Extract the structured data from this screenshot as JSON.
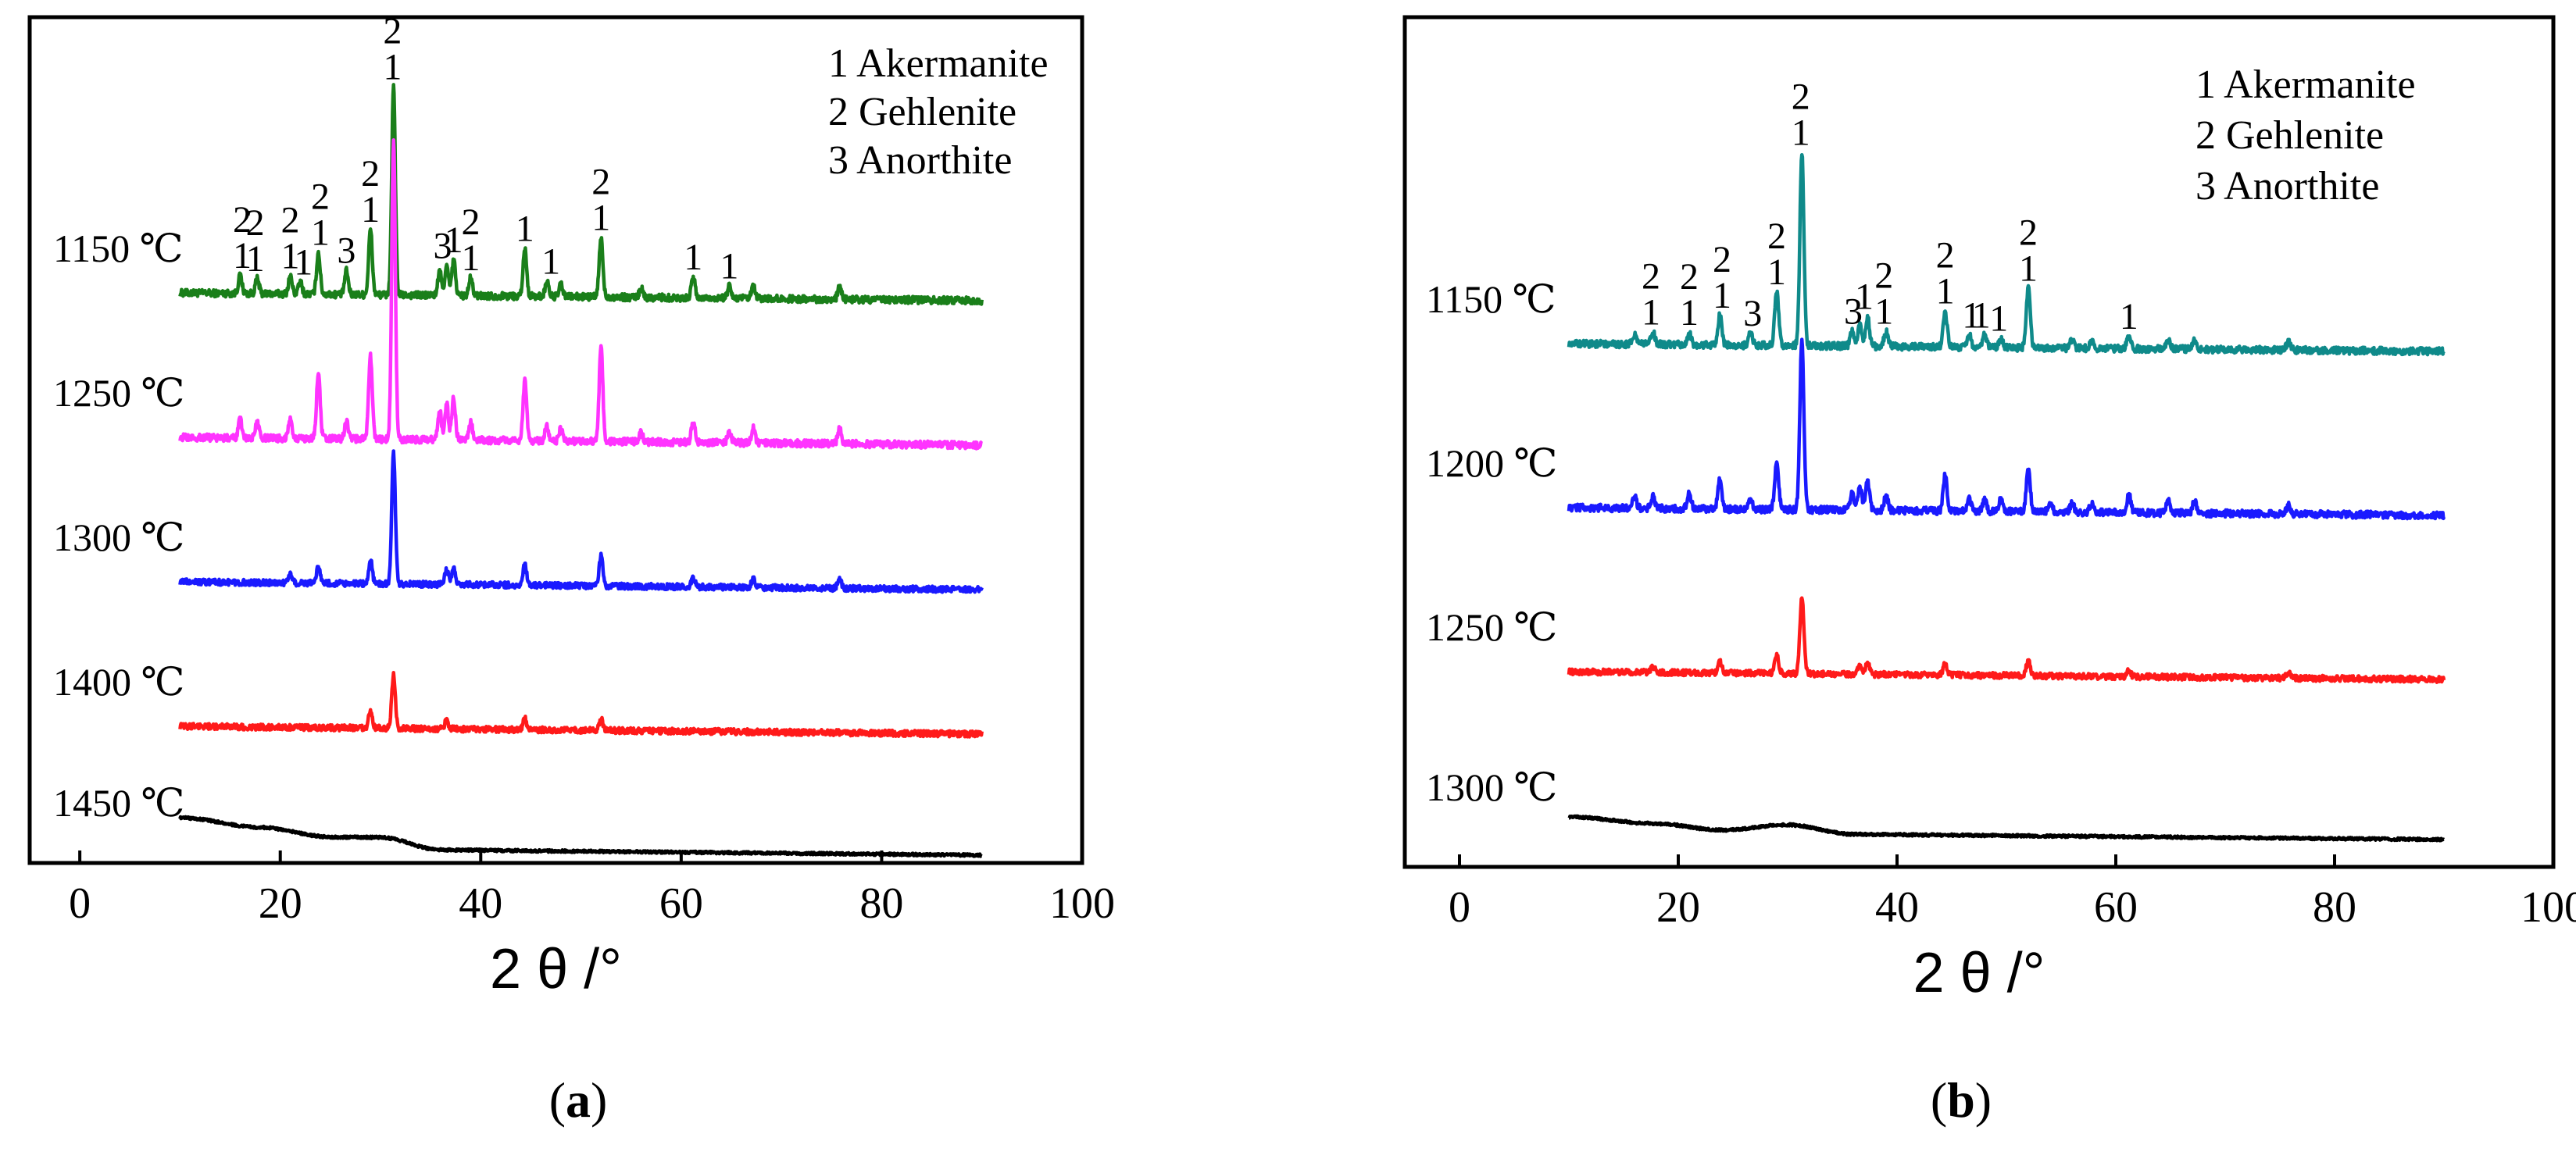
{
  "figure": {
    "panels": [
      {
        "label_open": "(",
        "label_letter": "a",
        "label_close": ")"
      },
      {
        "label_open": "(",
        "label_letter": "b",
        "label_close": ")"
      }
    ]
  },
  "chart_data": [
    {
      "type": "line",
      "panel": "a",
      "xlabel": "2 θ /°",
      "ylabel": "",
      "xlim": [
        -5,
        100
      ],
      "xticks": [
        0,
        20,
        40,
        60,
        80,
        100
      ],
      "xtick_labels": [
        "0",
        "20",
        "40",
        "60",
        "80",
        "100"
      ],
      "grid": false,
      "legend": {
        "placement": "top-right",
        "entries": [
          "1 Akermanite",
          "2 Gehlenite",
          "3 Anorthite"
        ]
      },
      "series": [
        {
          "name": "1150 ℃",
          "color": "#1a7f1a",
          "baseline": 0.14,
          "peaks": [
            [
              16.0,
              0.06
            ],
            [
              17.7,
              0.05
            ],
            [
              21.0,
              0.06
            ],
            [
              22.0,
              0.04
            ],
            [
              23.8,
              0.14
            ],
            [
              26.6,
              0.08
            ],
            [
              29.0,
              0.22
            ],
            [
              31.3,
              0.7
            ],
            [
              35.9,
              0.08
            ],
            [
              36.6,
              0.1
            ],
            [
              37.3,
              0.12
            ],
            [
              39.0,
              0.06
            ],
            [
              44.4,
              0.16
            ],
            [
              46.6,
              0.05
            ],
            [
              48.0,
              0.04
            ],
            [
              52.0,
              0.2
            ],
            [
              56.0,
              0.03
            ],
            [
              61.2,
              0.07
            ],
            [
              64.8,
              0.04
            ],
            [
              67.2,
              0.04
            ],
            [
              75.8,
              0.04
            ]
          ],
          "noise": 0.012
        },
        {
          "name": "1250 ℃",
          "color": "#ff33ff",
          "baseline": 0.11,
          "peaks": [
            [
              16.0,
              0.06
            ],
            [
              17.7,
              0.05
            ],
            [
              21.0,
              0.07
            ],
            [
              23.8,
              0.22
            ],
            [
              26.6,
              0.06
            ],
            [
              29.0,
              0.28
            ],
            [
              31.3,
              1.0
            ],
            [
              35.9,
              0.1
            ],
            [
              36.6,
              0.12
            ],
            [
              37.3,
              0.14
            ],
            [
              39.0,
              0.06
            ],
            [
              44.4,
              0.2
            ],
            [
              46.6,
              0.05
            ],
            [
              48.0,
              0.04
            ],
            [
              52.0,
              0.32
            ],
            [
              56.0,
              0.03
            ],
            [
              61.2,
              0.07
            ],
            [
              64.8,
              0.04
            ],
            [
              67.2,
              0.05
            ],
            [
              75.8,
              0.05
            ]
          ],
          "noise": 0.012
        },
        {
          "name": "1300 ℃",
          "color": "#1a1aff",
          "baseline": 0.11,
          "peaks": [
            [
              21.0,
              0.03
            ],
            [
              23.8,
              0.06
            ],
            [
              29.0,
              0.08
            ],
            [
              31.3,
              0.44
            ],
            [
              36.6,
              0.05
            ],
            [
              37.3,
              0.06
            ],
            [
              44.4,
              0.07
            ],
            [
              52.0,
              0.1
            ],
            [
              61.2,
              0.03
            ],
            [
              67.2,
              0.03
            ],
            [
              75.8,
              0.03
            ]
          ],
          "noise": 0.01
        },
        {
          "name": "1400 ℃",
          "color": "#ff1a1a",
          "baseline": 0.11,
          "peaks": [
            [
              29.0,
              0.06
            ],
            [
              31.3,
              0.18
            ],
            [
              36.6,
              0.03
            ],
            [
              44.4,
              0.04
            ],
            [
              52.0,
              0.04
            ]
          ],
          "noise": 0.01
        },
        {
          "name": "1450 ℃",
          "color": "#000000",
          "baseline": 0.06,
          "hump": [
            [
              10,
              0.1
            ],
            [
              18,
              0.07
            ],
            [
              25,
              0.04
            ],
            [
              30,
              0.04
            ],
            [
              36,
              0.0
            ],
            [
              90,
              0.0
            ]
          ],
          "noise": 0.004
        }
      ],
      "peak_annotations": [
        {
          "x": 16.2,
          "series": "1150 ℃",
          "labels": [
            "2",
            "1"
          ]
        },
        {
          "x": 17.5,
          "series": "1150 ℃",
          "labels": [
            "2",
            "1"
          ]
        },
        {
          "x": 21.0,
          "series": "1150 ℃",
          "labels": [
            "2",
            "1"
          ]
        },
        {
          "x": 22.3,
          "series": "1150 ℃",
          "labels": [
            "1"
          ]
        },
        {
          "x": 24.0,
          "series": "1150 ℃",
          "labels": [
            "2",
            "1"
          ]
        },
        {
          "x": 26.6,
          "series": "1150 ℃",
          "labels": [
            "3"
          ]
        },
        {
          "x": 29.0,
          "series": "1150 ℃",
          "labels": [
            "2",
            "1"
          ]
        },
        {
          "x": 31.2,
          "series": "1150 ℃",
          "labels": [
            "2",
            "1"
          ]
        },
        {
          "x": 36.2,
          "series": "1150 ℃",
          "labels": [
            "3"
          ]
        },
        {
          "x": 37.3,
          "series": "1150 ℃",
          "labels": [
            "1"
          ]
        },
        {
          "x": 39.0,
          "series": "1150 ℃",
          "labels": [
            "2",
            "1"
          ]
        },
        {
          "x": 44.4,
          "series": "1150 ℃",
          "labels": [
            "1"
          ]
        },
        {
          "x": 47.0,
          "series": "1150 ℃",
          "labels": [
            "1"
          ]
        },
        {
          "x": 52.0,
          "series": "1150 ℃",
          "labels": [
            "2",
            "1"
          ]
        },
        {
          "x": 61.2,
          "series": "1150 ℃",
          "labels": [
            "1"
          ]
        },
        {
          "x": 64.8,
          "series": "1150 ℃",
          "labels": [
            "1"
          ]
        }
      ]
    },
    {
      "type": "line",
      "panel": "b",
      "xlabel": "2 θ /°",
      "ylabel": "",
      "xlim": [
        -5,
        100
      ],
      "xticks": [
        0,
        20,
        40,
        60,
        80,
        100
      ],
      "xtick_labels": [
        "0",
        "20",
        "40",
        "60",
        "80",
        "100"
      ],
      "grid": false,
      "legend": {
        "placement": "top-right",
        "entries": [
          "1 Akermanite",
          "2 Gehlenite",
          "3 Anorthite"
        ]
      },
      "series": [
        {
          "name": "1150 ℃",
          "color": "#0f8a8a",
          "baseline": 0.14,
          "peaks": [
            [
              16.0,
              0.03
            ],
            [
              17.7,
              0.04
            ],
            [
              21.0,
              0.04
            ],
            [
              23.8,
              0.1
            ],
            [
              26.6,
              0.04
            ],
            [
              29.0,
              0.18
            ],
            [
              31.3,
              0.65
            ],
            [
              35.9,
              0.05
            ],
            [
              36.6,
              0.07
            ],
            [
              37.3,
              0.1
            ],
            [
              39.0,
              0.05
            ],
            [
              44.4,
              0.12
            ],
            [
              46.6,
              0.04
            ],
            [
              48.0,
              0.04
            ],
            [
              49.5,
              0.03
            ],
            [
              52.0,
              0.2
            ],
            [
              56.0,
              0.03
            ],
            [
              57.8,
              0.02
            ],
            [
              61.2,
              0.04
            ],
            [
              64.8,
              0.03
            ],
            [
              67.2,
              0.03
            ],
            [
              75.8,
              0.03
            ]
          ],
          "noise": 0.012
        },
        {
          "name": "1200 ℃",
          "color": "#1a1aff",
          "baseline": 0.11,
          "peaks": [
            [
              16.0,
              0.04
            ],
            [
              17.7,
              0.04
            ],
            [
              21.0,
              0.05
            ],
            [
              23.8,
              0.1
            ],
            [
              26.6,
              0.03
            ],
            [
              29.0,
              0.16
            ],
            [
              31.3,
              0.58
            ],
            [
              35.9,
              0.06
            ],
            [
              36.6,
              0.08
            ],
            [
              37.3,
              0.1
            ],
            [
              39.0,
              0.05
            ],
            [
              44.4,
              0.12
            ],
            [
              46.6,
              0.04
            ],
            [
              48.0,
              0.04
            ],
            [
              49.5,
              0.04
            ],
            [
              52.0,
              0.14
            ],
            [
              54.0,
              0.03
            ],
            [
              56.0,
              0.03
            ],
            [
              57.8,
              0.03
            ],
            [
              61.2,
              0.06
            ],
            [
              64.8,
              0.04
            ],
            [
              67.2,
              0.04
            ],
            [
              75.8,
              0.03
            ]
          ],
          "noise": 0.012
        },
        {
          "name": "1250 ℃",
          "color": "#ff1a1a",
          "baseline": 0.12,
          "peaks": [
            [
              17.7,
              0.02
            ],
            [
              23.8,
              0.04
            ],
            [
              29.0,
              0.06
            ],
            [
              31.3,
              0.26
            ],
            [
              36.6,
              0.03
            ],
            [
              37.3,
              0.04
            ],
            [
              44.4,
              0.04
            ],
            [
              52.0,
              0.05
            ],
            [
              61.2,
              0.02
            ],
            [
              75.8,
              0.02
            ]
          ],
          "noise": 0.01
        },
        {
          "name": "1300 ℃",
          "color": "#000000",
          "baseline": 0.06,
          "hump": [
            [
              10,
              0.05
            ],
            [
              18,
              0.03
            ],
            [
              24,
              0.01
            ],
            [
              30,
              0.03
            ],
            [
              36,
              0.0
            ],
            [
              90,
              0.0
            ]
          ],
          "noise": 0.004
        }
      ],
      "peak_annotations": [
        {
          "x": 17.5,
          "series": "1150 ℃",
          "labels": [
            "2",
            "1"
          ]
        },
        {
          "x": 21.0,
          "series": "1150 ℃",
          "labels": [
            "2",
            "1"
          ]
        },
        {
          "x": 24.0,
          "series": "1150 ℃",
          "labels": [
            "2",
            "1"
          ]
        },
        {
          "x": 26.8,
          "series": "1150 ℃",
          "labels": [
            "3"
          ]
        },
        {
          "x": 29.0,
          "series": "1150 ℃",
          "labels": [
            "2",
            "1"
          ]
        },
        {
          "x": 31.2,
          "series": "1150 ℃",
          "labels": [
            "2",
            "1"
          ]
        },
        {
          "x": 36.0,
          "series": "1150 ℃",
          "labels": [
            "3"
          ]
        },
        {
          "x": 37.0,
          "series": "1150 ℃",
          "labels": [
            "1"
          ]
        },
        {
          "x": 38.8,
          "series": "1150 ℃",
          "labels": [
            "2",
            "1"
          ]
        },
        {
          "x": 44.4,
          "series": "1150 ℃",
          "labels": [
            "2",
            "1"
          ]
        },
        {
          "x": 46.8,
          "series": "1150 ℃",
          "labels": [
            "1"
          ]
        },
        {
          "x": 47.7,
          "series": "1150 ℃",
          "labels": [
            "1"
          ]
        },
        {
          "x": 49.3,
          "series": "1150 ℃",
          "labels": [
            "1"
          ]
        },
        {
          "x": 52.0,
          "series": "1150 ℃",
          "labels": [
            "2",
            "1"
          ]
        },
        {
          "x": 61.2,
          "series": "1150 ℃",
          "labels": [
            "1"
          ]
        }
      ]
    }
  ]
}
